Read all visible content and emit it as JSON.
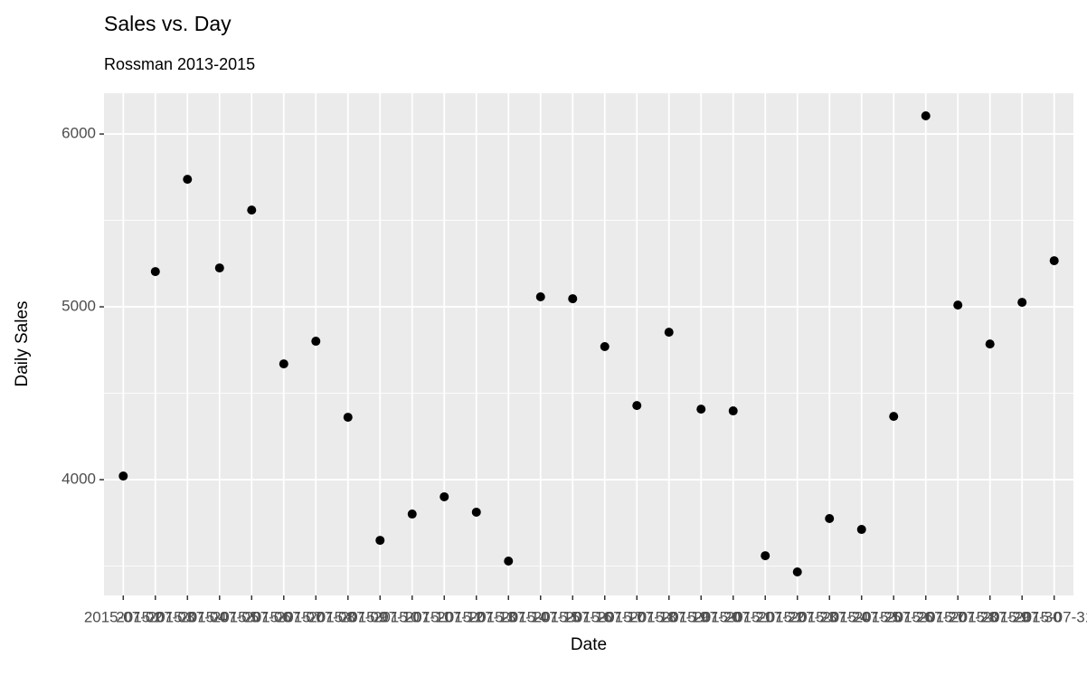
{
  "chart_data": {
    "type": "scatter",
    "title": "Sales vs. Day",
    "subtitle": "Rossman 2013-2015",
    "x_label": "Date",
    "y_label": "Daily Sales",
    "categories": [
      "2015-07-02",
      "2015-07-03",
      "2015-07-04",
      "2015-07-05",
      "2015-07-06",
      "2015-07-07",
      "2015-07-08",
      "2015-07-09",
      "2015-07-10",
      "2015-07-11",
      "2015-07-12",
      "2015-07-13",
      "2015-07-14",
      "2015-07-15",
      "2015-07-16",
      "2015-07-17",
      "2015-07-18",
      "2015-07-19",
      "2015-07-20",
      "2015-07-21",
      "2015-07-22",
      "2015-07-23",
      "2015-07-24",
      "2015-07-25",
      "2015-07-26",
      "2015-07-27",
      "2015-07-28",
      "2015-07-29",
      "2015-07-30",
      "2015-07-31"
    ],
    "values": [
      4021,
      5204,
      5738,
      5225,
      5560,
      4670,
      4801,
      4361,
      3649,
      3801,
      3901,
      3812,
      3529,
      5058,
      5047,
      4770,
      4429,
      4853,
      4408,
      4398,
      3560,
      3466,
      3775,
      3712,
      4366,
      6105,
      5010,
      4785,
      5026,
      5267
    ],
    "color": "#000000",
    "ylim": [
      3330,
      6236
    ],
    "yticks": [
      4000,
      5000,
      6000
    ],
    "grid": true
  }
}
